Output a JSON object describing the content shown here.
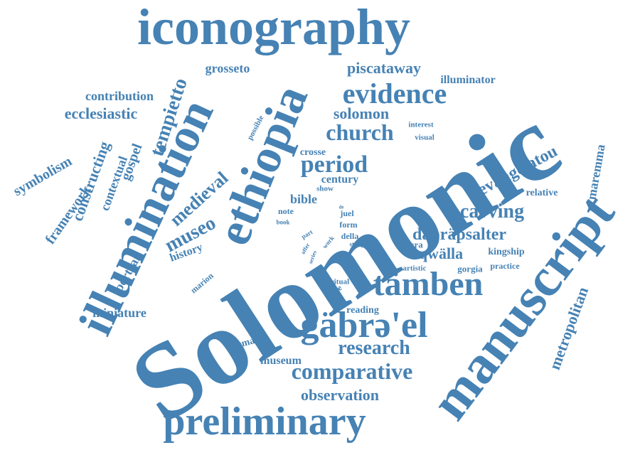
{
  "colors": {
    "word": "#4682b4",
    "background": "#ffffff"
  },
  "words": {
    "solomonic": "Solomonic",
    "manuscript": "manuscript",
    "iconography": "iconography",
    "illumination": "illumination",
    "ethiopia": "ethiopia",
    "tambien": "tämben",
    "gabra_el": "gäbrə'el",
    "preliminary": "preliminary",
    "evidence": "evidence",
    "church": "church",
    "period": "period",
    "comparative": "comparative",
    "research": "research",
    "carving": "carving",
    "dabra_psalter": "däbräpsalter",
    "qwalla": "qwälla",
    "evangelatou": "evangelatou",
    "metropolitan": "metropolitan",
    "maremma": "maremma",
    "museo": "museo",
    "medieval": "medieval",
    "tempietto": "tempietto",
    "piscataway": "piscataway",
    "solomon": "solomon",
    "ecclesiastic": "ecclesiastic",
    "contribution": "contribution",
    "grosseto": "grosseto",
    "illuminator": "illuminator",
    "observation": "observation",
    "museum": "museum",
    "miniature": "miniature",
    "history": "history",
    "portrait": "portrait",
    "symbolism": "symbolism",
    "framework": "framework",
    "constructing": "constructing",
    "contextual": "contextual",
    "gospel": "gospel",
    "bible": "bible",
    "century": "century",
    "crosse": "crosse",
    "kingship": "kingship",
    "relative": "relative",
    "reading": "reading",
    "remark": "remark",
    "cycle": "cycle",
    "marion": "marion",
    "gorgia": "gorgia",
    "practice": "practice",
    "sacra": "sacra",
    "artistic": "artistic",
    "interest": "interest",
    "visual": "visual",
    "possible": "possible",
    "show": "show",
    "note": "note",
    "book": "book",
    "juel": "juel",
    "form": "form",
    "della": "della",
    "study": "study",
    "ritual": "ritual",
    "part": "part",
    "work": "work",
    "offer": "offer",
    "series": "series",
    "de": "de"
  }
}
